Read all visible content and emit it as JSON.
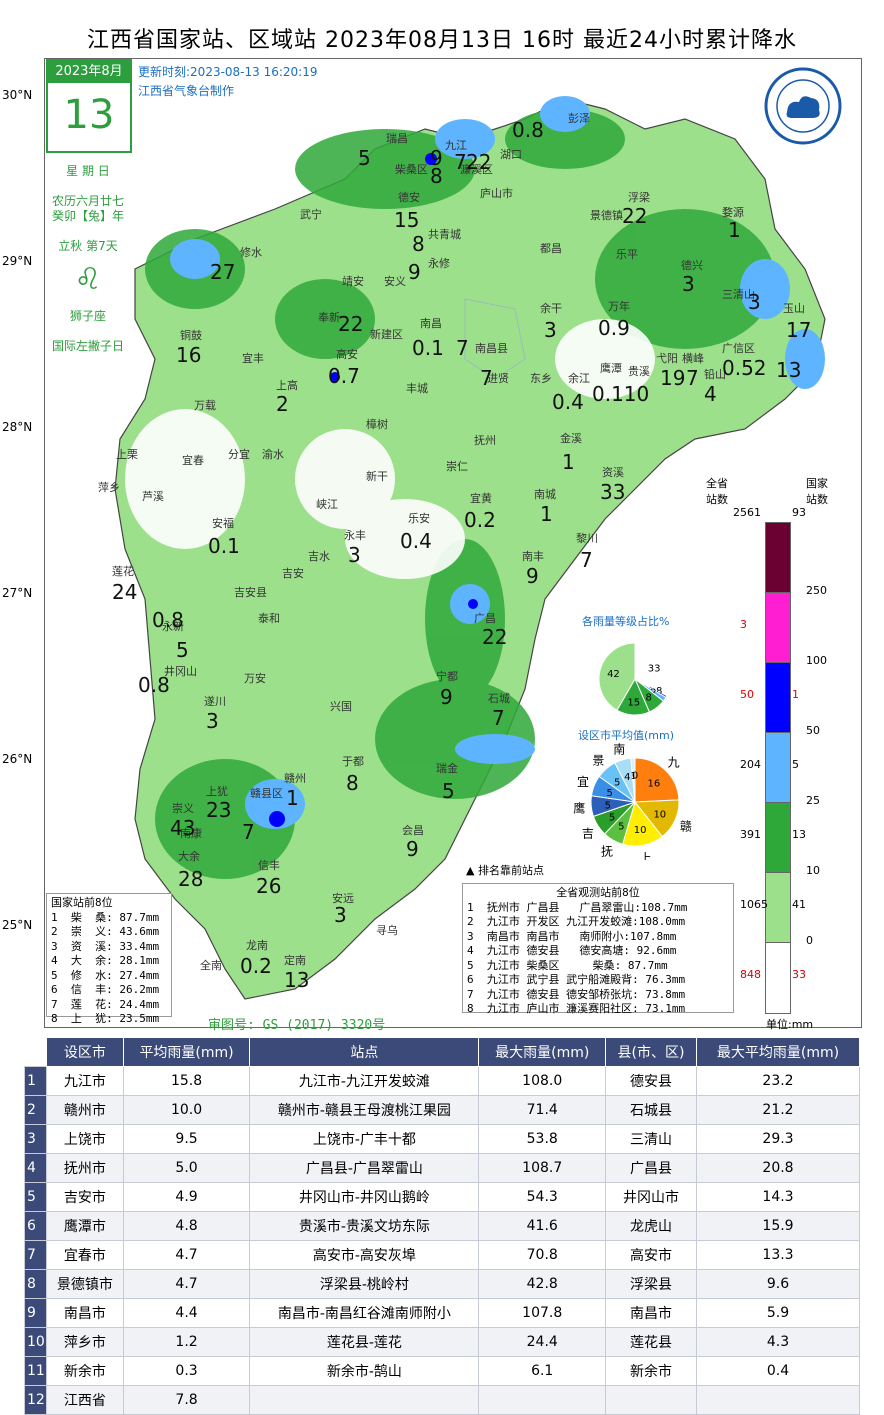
{
  "header": {
    "title": "江西省国家站、区域站    2023年08月13日 16时    最近24小时累计降水"
  },
  "date_box": {
    "year_month": "2023年8月",
    "day": "13",
    "weekday": "星 期 日",
    "lunar": "农历六月廿七",
    "ganzhi": "癸卯【兔】年",
    "solar_term": "立秋  第7天",
    "zodiac": "狮子座",
    "holiday": "国际左撇子日"
  },
  "update": {
    "time": "更新时刻:2023-08-13 16:20:19",
    "maker": "江西省气象台制作"
  },
  "lat_labels": [
    "30°N",
    "29°N",
    "28°N",
    "27°N",
    "26°N",
    "25°N"
  ],
  "place_labels": [
    {
      "name": "彭泽"
    },
    {
      "name": "瑞昌"
    },
    {
      "name": "九江"
    },
    {
      "name": "湖口"
    },
    {
      "name": "柴桑区"
    },
    {
      "name": "濂溪区"
    },
    {
      "name": "庐山市"
    },
    {
      "name": "德安"
    },
    {
      "name": "浮梁"
    },
    {
      "name": "武宁"
    },
    {
      "name": "景德镇"
    },
    {
      "name": "婺源"
    },
    {
      "name": "共青城"
    },
    {
      "name": "都昌"
    },
    {
      "name": "修水"
    },
    {
      "name": "永修"
    },
    {
      "name": "乐平"
    },
    {
      "name": "德兴"
    },
    {
      "name": "靖安"
    },
    {
      "name": "安义"
    },
    {
      "name": "三清山"
    },
    {
      "name": "玉山"
    },
    {
      "name": "奉新"
    },
    {
      "name": "余干"
    },
    {
      "name": "万年"
    },
    {
      "name": "新建区"
    },
    {
      "name": "南昌"
    },
    {
      "name": "铜鼓"
    },
    {
      "name": "宜丰"
    },
    {
      "name": "高安"
    },
    {
      "name": "南昌县"
    },
    {
      "name": "广信区"
    },
    {
      "name": "上高"
    },
    {
      "name": "进贤"
    },
    {
      "name": "东乡"
    },
    {
      "name": "余江"
    },
    {
      "name": "鹰潭"
    },
    {
      "name": "贵溪"
    },
    {
      "name": "弋阳"
    },
    {
      "name": "横峰"
    },
    {
      "name": "铅山"
    },
    {
      "name": "丰城"
    },
    {
      "name": "万载"
    },
    {
      "name": "樟树"
    },
    {
      "name": "金溪"
    },
    {
      "name": "上栗"
    },
    {
      "name": "宜春"
    },
    {
      "name": "分宜"
    },
    {
      "name": "渝水"
    },
    {
      "name": "抚州"
    },
    {
      "name": "资溪"
    },
    {
      "name": "新干"
    },
    {
      "name": "崇仁"
    },
    {
      "name": "萍乡"
    },
    {
      "name": "芦溪"
    },
    {
      "name": "峡江"
    },
    {
      "name": "宜黄"
    },
    {
      "name": "南城"
    },
    {
      "name": "安福"
    },
    {
      "name": "乐安"
    },
    {
      "name": "永丰"
    },
    {
      "name": "黎川"
    },
    {
      "name": "吉水"
    },
    {
      "name": "莲花"
    },
    {
      "name": "吉安"
    },
    {
      "name": "南丰"
    },
    {
      "name": "吉安县"
    },
    {
      "name": "永新"
    },
    {
      "name": "泰和"
    },
    {
      "name": "广昌"
    },
    {
      "name": "井冈山"
    },
    {
      "name": "万安"
    },
    {
      "name": "宁都"
    },
    {
      "name": "遂川"
    },
    {
      "name": "兴国"
    },
    {
      "name": "石城"
    },
    {
      "name": "于都"
    },
    {
      "name": "瑞金"
    },
    {
      "name": "上犹"
    },
    {
      "name": "赣县区"
    },
    {
      "name": "赣州"
    },
    {
      "name": "崇义"
    },
    {
      "name": "南康"
    },
    {
      "name": "会昌"
    },
    {
      "name": "大余"
    },
    {
      "name": "信丰"
    },
    {
      "name": "安远"
    },
    {
      "name": "寻乌"
    },
    {
      "name": "龙南"
    },
    {
      "name": "全南"
    },
    {
      "name": "定南"
    }
  ],
  "values": [
    {
      "v": "0.8"
    },
    {
      "v": "5"
    },
    {
      "v": "9"
    },
    {
      "v": "7"
    },
    {
      "v": "22"
    },
    {
      "v": "8"
    },
    {
      "v": "15"
    },
    {
      "v": "22"
    },
    {
      "v": "8"
    },
    {
      "v": "27"
    },
    {
      "v": "9"
    },
    {
      "v": "1"
    },
    {
      "v": "3"
    },
    {
      "v": "22"
    },
    {
      "v": "3"
    },
    {
      "v": "3"
    },
    {
      "v": "0.9"
    },
    {
      "v": "0.1"
    },
    {
      "v": "7"
    },
    {
      "v": "17"
    },
    {
      "v": "16"
    },
    {
      "v": "0.7"
    },
    {
      "v": "7"
    },
    {
      "v": "0.110"
    },
    {
      "v": "19"
    },
    {
      "v": "7"
    },
    {
      "v": "0.52"
    },
    {
      "v": "13"
    },
    {
      "v": "2"
    },
    {
      "v": "0.4"
    },
    {
      "v": "4"
    },
    {
      "v": "1"
    },
    {
      "v": "33"
    },
    {
      "v": "0.2"
    },
    {
      "v": "1"
    },
    {
      "v": "0.1"
    },
    {
      "v": "3"
    },
    {
      "v": "0.4"
    },
    {
      "v": "7"
    },
    {
      "v": "24"
    },
    {
      "v": "9"
    },
    {
      "v": "0.8"
    },
    {
      "v": "5"
    },
    {
      "v": "22"
    },
    {
      "v": "0.8"
    },
    {
      "v": "3"
    },
    {
      "v": "9"
    },
    {
      "v": "7"
    },
    {
      "v": "8"
    },
    {
      "v": "5"
    },
    {
      "v": "23"
    },
    {
      "v": "7"
    },
    {
      "v": "1"
    },
    {
      "v": "43"
    },
    {
      "v": "9"
    },
    {
      "v": "26"
    },
    {
      "v": "28"
    },
    {
      "v": "3"
    },
    {
      "v": "0.2"
    },
    {
      "v": "13"
    }
  ],
  "national_top8": {
    "title": "国家站前8位",
    "rows": [
      "1  柴  桑: 87.7mm",
      "2  崇  义: 43.6mm",
      "3  资  溪: 33.4mm",
      "4  大  余: 28.1mm",
      "5  修  水: 27.4mm",
      "6  信  丰: 26.2mm",
      "7  莲  花: 24.4mm",
      "8  上  犹: 23.5mm"
    ]
  },
  "province_top8": {
    "title": "全省观测站前8位",
    "rows": [
      "1  抚州市 广昌县   广昌翠雷山:108.7mm",
      "2  九江市 开发区 九江开发蛟滩:108.0mm",
      "3  南昌市 南昌市   南师附小:107.8mm",
      "4  九江市 德安县   德安高塘: 92.6mm",
      "5  九江市 柴桑区     柴桑: 87.7mm",
      "6  九江市 武宁县 武宁船滩殿背: 76.3mm",
      "7  九江市 德安县 德安邹桥张坑: 73.8mm",
      "8  九江市 庐山市 濂溪赛阳社区: 73.1mm"
    ]
  },
  "approval": "审图号: GS (2017) 3320号",
  "triangle_note": "排名靠前站点",
  "legend": {
    "col_left": "全省\n站数",
    "col_right": "国家\n站数",
    "unit": "单位:mm",
    "total_left": "2561",
    "total_right": "93",
    "levels": [
      {
        "threshold": "250",
        "color": "#6b0033",
        "left": "",
        "right": ""
      },
      {
        "threshold": "100",
        "color": "#ff1ed2",
        "left": "3",
        "right": ""
      },
      {
        "threshold": "50",
        "color": "#0000ff",
        "left": "50",
        "right": "1"
      },
      {
        "threshold": "25",
        "color": "#5fb4ff",
        "left": "204",
        "right": "5"
      },
      {
        "threshold": "10",
        "color": "#2fa83a",
        "left": "391",
        "right": "13"
      },
      {
        "threshold": "0",
        "color": "#9de08c",
        "left": "1065",
        "right": "41"
      },
      {
        "threshold": "",
        "color": "#ffffff",
        "left": "848",
        "right": "33"
      }
    ]
  },
  "pie_levels": {
    "title": "各雨量等级占比%",
    "slices": [
      {
        "v": 33,
        "label": "33"
      },
      {
        "v": 0.8,
        "label": "0.8"
      },
      {
        "v": 2,
        "label": "2"
      },
      {
        "v": 8,
        "label": "8"
      },
      {
        "v": 15,
        "label": "15"
      },
      {
        "v": 42,
        "label": "42"
      }
    ]
  },
  "pie_city": {
    "title": "设区市平均值(mm)",
    "slices": [
      {
        "name": "九",
        "v": 16,
        "label": "16",
        "color": "#ff7f0e"
      },
      {
        "name": "赣",
        "v": 10,
        "label": "10",
        "color": "#e3b800"
      },
      {
        "name": "上",
        "v": 10,
        "label": "10",
        "color": "#ffee00"
      },
      {
        "name": "抚",
        "v": 5,
        "label": "5",
        "color": "#5dbf3f"
      },
      {
        "name": "吉",
        "v": 5,
        "label": "5",
        "color": "#2a9d2a"
      },
      {
        "name": "鹰",
        "v": 5,
        "label": "5",
        "color": "#2b60b8"
      },
      {
        "name": "宜",
        "v": 5,
        "label": "5",
        "color": "#3a8ee6"
      },
      {
        "name": "景",
        "v": 5,
        "label": "5",
        "color": "#69c2f5"
      },
      {
        "name": "南",
        "v": 4,
        "label": "4",
        "color": "#a8ddf8"
      },
      {
        "name": "",
        "v": 1,
        "label": "1",
        "color": "#d9f0fb"
      },
      {
        "name": "",
        "v": 0,
        "label": "0",
        "color": "#f0f8fc"
      }
    ]
  },
  "table": {
    "headers": [
      "设区市",
      "平均雨量(mm)",
      "站点",
      "最大雨量(mm)",
      "县(市、区)",
      "最大平均雨量(mm)"
    ],
    "rows": [
      {
        "idx": "1",
        "city": "九江市",
        "avg": "15.8",
        "station": "九江市-九江开发蛟滩",
        "max": "108.0",
        "county": "德安县",
        "cmax": "23.2"
      },
      {
        "idx": "2",
        "city": "赣州市",
        "avg": "10.0",
        "station": "赣州市-赣县王母渡桃江果园",
        "max": "71.4",
        "county": "石城县",
        "cmax": "21.2"
      },
      {
        "idx": "3",
        "city": "上饶市",
        "avg": "9.5",
        "station": "上饶市-广丰十都",
        "max": "53.8",
        "county": "三清山",
        "cmax": "29.3"
      },
      {
        "idx": "4",
        "city": "抚州市",
        "avg": "5.0",
        "station": "广昌县-广昌翠雷山",
        "max": "108.7",
        "county": "广昌县",
        "cmax": "20.8"
      },
      {
        "idx": "5",
        "city": "吉安市",
        "avg": "4.9",
        "station": "井冈山市-井冈山鹅岭",
        "max": "54.3",
        "county": "井冈山市",
        "cmax": "14.3"
      },
      {
        "idx": "6",
        "city": "鹰潭市",
        "avg": "4.8",
        "station": "贵溪市-贵溪文坊东际",
        "max": "41.6",
        "county": "龙虎山",
        "cmax": "15.9"
      },
      {
        "idx": "7",
        "city": "宜春市",
        "avg": "4.7",
        "station": "高安市-高安灰埠",
        "max": "70.8",
        "county": "高安市",
        "cmax": "13.3"
      },
      {
        "idx": "8",
        "city": "景德镇市",
        "avg": "4.7",
        "station": "浮梁县-桃岭村",
        "max": "42.8",
        "county": "浮梁县",
        "cmax": "9.6"
      },
      {
        "idx": "9",
        "city": "南昌市",
        "avg": "4.4",
        "station": "南昌市-南昌红谷滩南师附小",
        "max": "107.8",
        "county": "南昌市",
        "cmax": "5.9"
      },
      {
        "idx": "10",
        "city": "萍乡市",
        "avg": "1.2",
        "station": "莲花县-莲花",
        "max": "24.4",
        "county": "莲花县",
        "cmax": "4.3"
      },
      {
        "idx": "11",
        "city": "新余市",
        "avg": "0.3",
        "station": "新余市-鹄山",
        "max": "6.1",
        "county": "新余市",
        "cmax": "0.4"
      },
      {
        "idx": "12",
        "city": "江西省",
        "avg": "7.8",
        "station": "",
        "max": "",
        "county": "",
        "cmax": ""
      }
    ]
  }
}
